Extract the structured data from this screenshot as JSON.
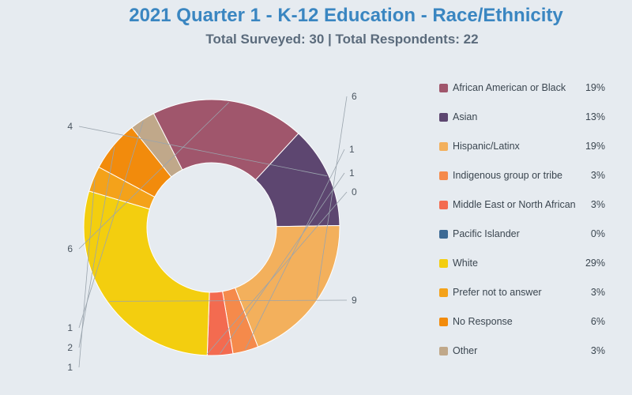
{
  "title": "2021 Quarter 1 - K-12 Education - Race/Ethnicity",
  "subtitle": "Total Surveyed: 30 | Total Respondents: 22",
  "chart_data": {
    "type": "pie",
    "donut": true,
    "legend_position": "right",
    "slices": [
      {
        "label": "African American or Black",
        "value": 6,
        "percent": "19%",
        "color": "#a0566c"
      },
      {
        "label": "Asian",
        "value": 4,
        "percent": "13%",
        "color": "#5d4670"
      },
      {
        "label": "Hispanic/Latinx",
        "value": 6,
        "percent": "19%",
        "color": "#f3b05c"
      },
      {
        "label": "Indigenous group or tribe",
        "value": 1,
        "percent": "3%",
        "color": "#f58a4b"
      },
      {
        "label": "Middle East or North African",
        "value": 1,
        "percent": "3%",
        "color": "#f36b50"
      },
      {
        "label": "Pacific Islander",
        "value": 0,
        "percent": "0%",
        "color": "#3d6a94"
      },
      {
        "label": "White",
        "value": 9,
        "percent": "29%",
        "color": "#f3ce0f"
      },
      {
        "label": "Prefer not to answer",
        "value": 1,
        "percent": "3%",
        "color": "#f4a21a"
      },
      {
        "label": "No Response",
        "value": 2,
        "percent": "6%",
        "color": "#f28b0c"
      },
      {
        "label": "Other",
        "value": 1,
        "percent": "3%",
        "color": "#c0a88a"
      }
    ]
  }
}
